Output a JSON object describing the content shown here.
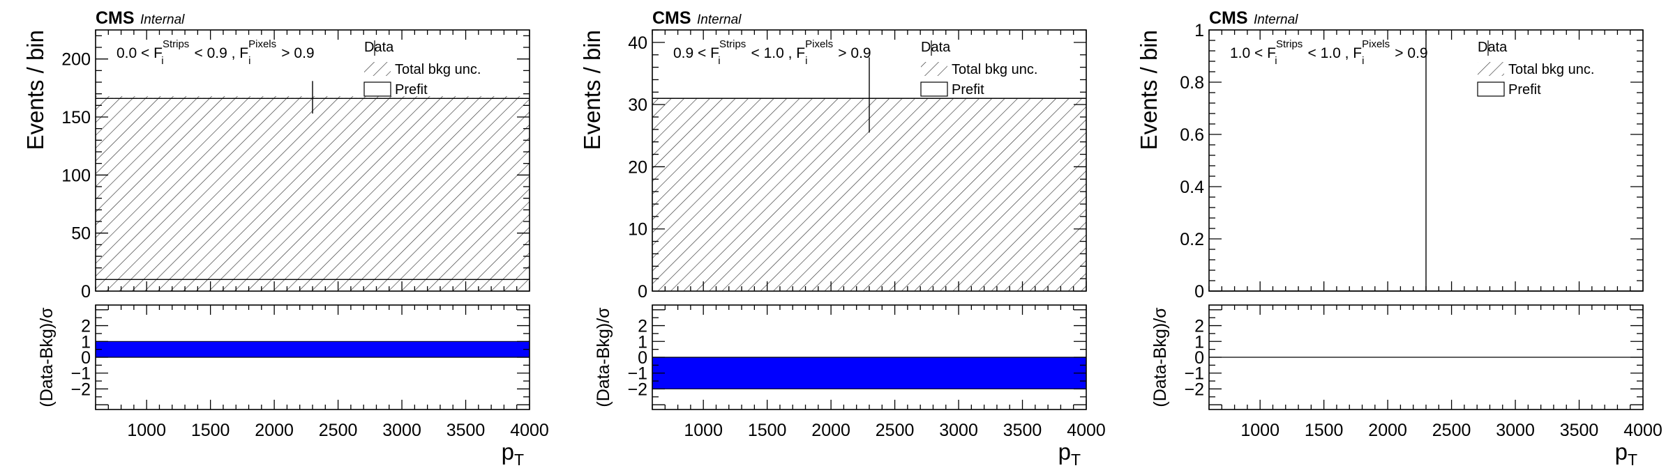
{
  "chart_data": [
    {
      "type": "histogram",
      "experiment": "CMS",
      "label": "Internal",
      "region": {
        "left": "0.0 < F",
        "sym1": "i",
        "sup1": "Strips",
        "middle": " < 0.9 , F",
        "sym2": "i",
        "sup2": "Pixels",
        "right": " > 0.9"
      },
      "xlabel": "p",
      "xlabel_sub": "T",
      "ylabel": "Events / bin",
      "ratio_ylabel": "(Data-Bkg)/σ",
      "xlim": [
        600,
        4000
      ],
      "ylim": [
        0,
        225
      ],
      "ratio_ylim": [
        -3.3,
        3.3
      ],
      "xticks": [
        1000,
        1500,
        2000,
        2500,
        3000,
        3500,
        4000
      ],
      "xtick_labels": [
        "1000",
        "1500",
        "2000",
        "2500",
        "3000",
        "3500",
        "4000"
      ],
      "yticks": [
        0,
        50,
        100,
        150,
        200
      ],
      "ytick_labels": [
        "0",
        "50",
        "100",
        "150",
        "200"
      ],
      "ratio_yticks": [
        -2,
        -1,
        0,
        1,
        2
      ],
      "ratio_ytick_labels": [
        "−2",
        "−1",
        "0",
        "1",
        "2"
      ],
      "legend": [
        "Data",
        "Total bkg unc.",
        "Prefit"
      ],
      "legend_position": "top-right",
      "bins": [
        [
          600,
          4000
        ]
      ],
      "prefit": [
        10
      ],
      "postfit": [
        166
      ],
      "postfit_unc": [
        2
      ],
      "data": [
        {
          "x": 2300,
          "y": 166,
          "err_low": 13,
          "err_high": 15
        }
      ],
      "pull": [
        {
          "x_low": 600,
          "x_high": 4000,
          "value": 1.0
        }
      ]
    },
    {
      "type": "histogram",
      "experiment": "CMS",
      "label": "Internal",
      "region": {
        "left": "0.9 < F",
        "sym1": "i",
        "sup1": "Strips",
        "middle": " < 1.0 , F",
        "sym2": "i",
        "sup2": "Pixels",
        "right": " > 0.9"
      },
      "xlabel": "p",
      "xlabel_sub": "T",
      "ylabel": "Events / bin",
      "ratio_ylabel": "(Data-Bkg)/σ",
      "xlim": [
        600,
        4000
      ],
      "ylim": [
        0,
        42
      ],
      "ratio_ylim": [
        -3.3,
        3.3
      ],
      "xticks": [
        1000,
        1500,
        2000,
        2500,
        3000,
        3500,
        4000
      ],
      "xtick_labels": [
        "1000",
        "1500",
        "2000",
        "2500",
        "3000",
        "3500",
        "4000"
      ],
      "yticks": [
        0,
        10,
        20,
        30,
        40
      ],
      "ytick_labels": [
        "0",
        "10",
        "20",
        "30",
        "40"
      ],
      "ratio_yticks": [
        -2,
        -1,
        0,
        1,
        2
      ],
      "ratio_ytick_labels": [
        "−2",
        "−1",
        "0",
        "1",
        "2"
      ],
      "legend": [
        "Data",
        "Total bkg unc.",
        "Prefit"
      ],
      "legend_position": "top-right",
      "bins": [
        [
          600,
          4000
        ]
      ],
      "prefit": [
        31
      ],
      "postfit": [
        31
      ],
      "postfit_unc": [
        0
      ],
      "data": [
        {
          "x": 2300,
          "y": 31,
          "err_low": 5.5,
          "err_high": 6.6
        }
      ],
      "pull": [
        {
          "x_low": 600,
          "x_high": 4000,
          "value": -2.0
        }
      ]
    },
    {
      "type": "histogram",
      "experiment": "CMS",
      "label": "Internal",
      "region": {
        "left": "1.0 < F",
        "sym1": "i",
        "sup1": "Strips",
        "middle": " < 1.0 , F",
        "sym2": "i",
        "sup2": "Pixels",
        "right": " > 0.9"
      },
      "xlabel": "p",
      "xlabel_sub": "T",
      "ylabel": "Events / bin",
      "ratio_ylabel": "(Data-Bkg)/σ",
      "xlim": [
        600,
        4000
      ],
      "ylim": [
        0,
        1
      ],
      "ratio_ylim": [
        -3.3,
        3.3
      ],
      "xticks": [
        1000,
        1500,
        2000,
        2500,
        3000,
        3500,
        4000
      ],
      "xtick_labels": [
        "1000",
        "1500",
        "2000",
        "2500",
        "3000",
        "3500",
        "4000"
      ],
      "yticks": [
        0,
        0.2,
        0.4,
        0.6,
        0.8,
        1
      ],
      "ytick_labels": [
        "0",
        "0.2",
        "0.4",
        "0.6",
        "0.8",
        "1"
      ],
      "ratio_yticks": [
        -2,
        -1,
        0,
        1,
        2
      ],
      "ratio_ytick_labels": [
        "−2",
        "−1",
        "0",
        "1",
        "2"
      ],
      "legend": [
        "Data",
        "Total bkg unc.",
        "Prefit"
      ],
      "legend_position": "top-right",
      "bins": [
        [
          600,
          4000
        ]
      ],
      "prefit": [
        0
      ],
      "postfit": [
        0
      ],
      "postfit_unc": [
        0
      ],
      "data": [
        {
          "x": 2300,
          "y": 0,
          "err_low": 0,
          "err_high": 1.0
        }
      ],
      "pull": [
        {
          "x_low": 600,
          "x_high": 4000,
          "value": 0
        }
      ]
    }
  ],
  "colors": {
    "pull_fill": "#0000ff",
    "axes": "#000000",
    "hatch": "#333333"
  }
}
